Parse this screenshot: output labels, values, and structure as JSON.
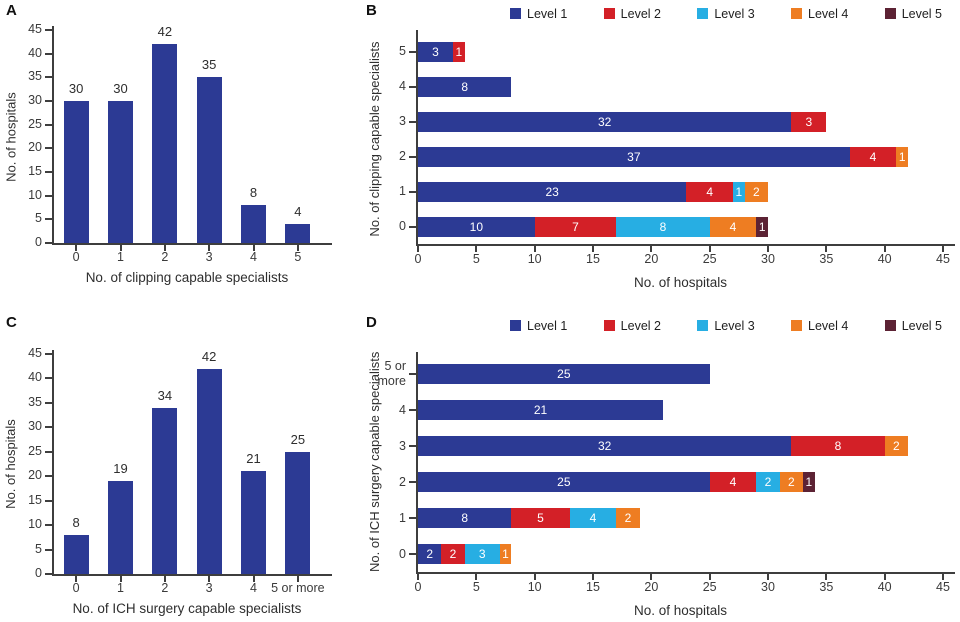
{
  "figure": {
    "background": "#ffffff",
    "axis_text_color": "#3b3b3b"
  },
  "levels": [
    {
      "label": "Level 1",
      "color": "#2C3A94"
    },
    {
      "label": "Level 2",
      "color": "#D32027"
    },
    {
      "label": "Level 3",
      "color": "#27AEE3"
    },
    {
      "label": "Level 4",
      "color": "#EE7D22"
    },
    {
      "label": "Level 5",
      "color": "#5C2234"
    }
  ],
  "chart_data": [
    {
      "panel_label": "A",
      "type": "bar",
      "categories": [
        "0",
        "1",
        "2",
        "3",
        "4",
        "5"
      ],
      "values": [
        30,
        30,
        42,
        35,
        8,
        4
      ],
      "bar_color": "#2C3A94",
      "xlabel": "No. of clipping capable specialists",
      "ylabel": "No. of hospitals",
      "ylim": [
        0,
        45
      ],
      "ytick_step": 5,
      "grid": false,
      "value_labels": "above-bars"
    },
    {
      "panel_label": "B",
      "type": "stacked_bar_horizontal",
      "categories_top_to_bottom": [
        "5",
        "4",
        "3",
        "2",
        "1",
        "0"
      ],
      "series": [
        {
          "name": "Level 1",
          "color": "#2C3A94",
          "values": [
            3,
            8,
            32,
            37,
            23,
            10
          ]
        },
        {
          "name": "Level 2",
          "color": "#D32027",
          "values": [
            1,
            0,
            3,
            4,
            4,
            7
          ]
        },
        {
          "name": "Level 3",
          "color": "#27AEE3",
          "values": [
            0,
            0,
            0,
            0,
            1,
            8
          ]
        },
        {
          "name": "Level 4",
          "color": "#EE7D22",
          "values": [
            0,
            0,
            0,
            1,
            2,
            4
          ]
        },
        {
          "name": "Level 5",
          "color": "#5C2234",
          "values": [
            0,
            0,
            0,
            0,
            0,
            1
          ]
        }
      ],
      "xlabel": "No. of hospitals",
      "ylabel": "No. of clipping capable specialists",
      "xlim": [
        0,
        45
      ],
      "xtick_step": 5,
      "legend_position": "top",
      "grid": false,
      "value_labels": "inside-segments-white"
    },
    {
      "panel_label": "C",
      "type": "bar",
      "categories": [
        "0",
        "1",
        "2",
        "3",
        "4",
        "5 or more"
      ],
      "values": [
        8,
        19,
        34,
        42,
        21,
        25
      ],
      "bar_color": "#2C3A94",
      "xlabel": "No. of ICH surgery capable specialists",
      "ylabel": "No. of hospitals",
      "ylim": [
        0,
        45
      ],
      "ytick_step": 5,
      "grid": false,
      "value_labels": "above-bars"
    },
    {
      "panel_label": "D",
      "type": "stacked_bar_horizontal",
      "categories_top_to_bottom": [
        "5 or more",
        "4",
        "3",
        "2",
        "1",
        "0"
      ],
      "series": [
        {
          "name": "Level 1",
          "color": "#2C3A94",
          "values": [
            25,
            21,
            32,
            25,
            8,
            2
          ]
        },
        {
          "name": "Level 2",
          "color": "#D32027",
          "values": [
            0,
            0,
            8,
            4,
            5,
            2
          ]
        },
        {
          "name": "Level 3",
          "color": "#27AEE3",
          "values": [
            0,
            0,
            0,
            2,
            4,
            3
          ]
        },
        {
          "name": "Level 4",
          "color": "#EE7D22",
          "values": [
            0,
            0,
            2,
            2,
            2,
            1
          ]
        },
        {
          "name": "Level 5",
          "color": "#5C2234",
          "values": [
            0,
            0,
            0,
            1,
            0,
            0
          ]
        }
      ],
      "xlabel": "No. of hospitals",
      "ylabel": "No. of ICH surgery capable specialists",
      "xlim": [
        0,
        45
      ],
      "xtick_step": 5,
      "legend_position": "top",
      "grid": false,
      "value_labels": "inside-segments-white"
    }
  ]
}
